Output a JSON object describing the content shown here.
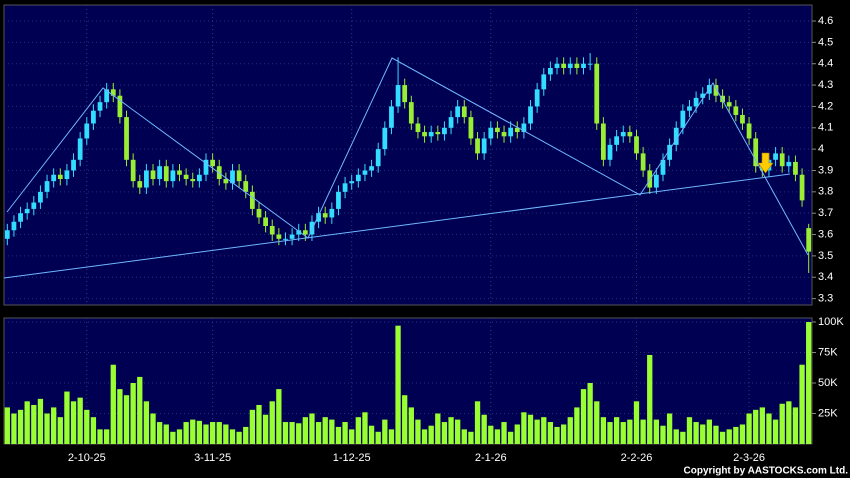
{
  "chart_data": {
    "type": "candlestick",
    "categories": [
      null,
      null,
      null,
      null,
      null,
      null,
      null,
      null,
      null,
      null,
      null,
      null,
      "2-10-25",
      null,
      null,
      null,
      null,
      null,
      null,
      null,
      null,
      null,
      null,
      null,
      null,
      null,
      null,
      null,
      null,
      null,
      null,
      "3-11-25",
      null,
      null,
      null,
      null,
      null,
      null,
      null,
      null,
      null,
      null,
      null,
      null,
      null,
      null,
      null,
      null,
      null,
      null,
      null,
      null,
      "1-12-25",
      null,
      null,
      null,
      null,
      null,
      null,
      null,
      null,
      null,
      null,
      null,
      null,
      null,
      null,
      null,
      null,
      null,
      null,
      null,
      null,
      "2-1-26",
      null,
      null,
      null,
      null,
      null,
      null,
      null,
      null,
      null,
      null,
      null,
      null,
      null,
      null,
      null,
      null,
      null,
      null,
      null,
      null,
      null,
      "2-2-26",
      null,
      null,
      null,
      null,
      null,
      null,
      null,
      null,
      null,
      null,
      null,
      null,
      null,
      null,
      null,
      null,
      "2-3-26",
      null,
      null,
      null,
      null,
      null,
      null,
      null,
      null,
      null
    ],
    "open": [
      3.58,
      3.62,
      3.66,
      3.7,
      3.72,
      3.75,
      3.8,
      3.85,
      3.88,
      3.86,
      3.9,
      3.95,
      4.05,
      4.12,
      4.18,
      4.22,
      4.28,
      4.25,
      4.15,
      3.95,
      3.85,
      3.82,
      3.9,
      3.86,
      3.92,
      3.85,
      3.9,
      3.88,
      3.86,
      3.85,
      3.88,
      3.95,
      3.92,
      3.86,
      3.84,
      3.9,
      3.85,
      3.8,
      3.72,
      3.68,
      3.64,
      3.6,
      3.58,
      3.58,
      3.6,
      3.62,
      3.6,
      3.66,
      3.7,
      3.68,
      3.72,
      3.8,
      3.84,
      3.85,
      3.88,
      3.9,
      3.92,
      4.0,
      4.1,
      4.2,
      4.3,
      4.22,
      4.12,
      4.08,
      4.06,
      4.08,
      4.07,
      4.1,
      4.15,
      4.2,
      4.15,
      4.05,
      3.98,
      4.05,
      4.1,
      4.08,
      4.06,
      4.1,
      4.08,
      4.12,
      4.2,
      4.28,
      4.35,
      4.38,
      4.4,
      4.38,
      4.4,
      4.38,
      4.4,
      4.4,
      4.12,
      3.95,
      4.02,
      4.06,
      4.08,
      4.06,
      3.98,
      3.9,
      3.82,
      3.88,
      3.95,
      4.02,
      4.1,
      4.18,
      4.2,
      4.24,
      4.26,
      4.3,
      4.25,
      4.22,
      4.2,
      4.16,
      4.12,
      4.05,
      3.92,
      3.9,
      3.95,
      3.98,
      3.92,
      3.94,
      3.88,
      3.63
    ],
    "high": [
      3.65,
      3.69,
      3.73,
      3.75,
      3.78,
      3.83,
      3.88,
      3.91,
      3.91,
      3.93,
      3.98,
      4.08,
      4.15,
      4.21,
      4.25,
      4.31,
      4.31,
      4.28,
      4.18,
      3.98,
      3.88,
      3.93,
      3.93,
      3.95,
      3.95,
      3.93,
      3.93,
      3.91,
      3.89,
      3.91,
      3.98,
      3.98,
      3.95,
      3.89,
      3.93,
      3.93,
      3.88,
      3.83,
      3.75,
      3.71,
      3.67,
      3.63,
      3.61,
      3.63,
      3.65,
      3.65,
      3.69,
      3.73,
      3.73,
      3.75,
      3.83,
      3.87,
      3.88,
      3.91,
      3.93,
      3.95,
      4.03,
      4.13,
      4.23,
      4.43,
      4.33,
      4.25,
      4.15,
      4.11,
      4.11,
      4.11,
      4.13,
      4.18,
      4.23,
      4.23,
      4.18,
      4.08,
      4.08,
      4.13,
      4.13,
      4.11,
      4.13,
      4.13,
      4.15,
      4.23,
      4.31,
      4.38,
      4.41,
      4.43,
      4.43,
      4.43,
      4.43,
      4.43,
      4.45,
      4.43,
      4.15,
      4.05,
      4.09,
      4.11,
      4.11,
      4.09,
      4.01,
      3.93,
      3.91,
      3.98,
      4.05,
      4.13,
      4.21,
      4.23,
      4.27,
      4.29,
      4.33,
      4.33,
      4.28,
      4.25,
      4.23,
      4.19,
      4.15,
      4.08,
      3.95,
      3.98,
      4.01,
      4.01,
      3.97,
      3.97,
      3.91,
      3.65
    ],
    "low": [
      3.55,
      3.59,
      3.63,
      3.67,
      3.69,
      3.72,
      3.77,
      3.82,
      3.83,
      3.83,
      3.87,
      3.92,
      4.02,
      4.09,
      4.15,
      4.19,
      4.22,
      4.12,
      3.92,
      3.82,
      3.79,
      3.79,
      3.83,
      3.83,
      3.82,
      3.82,
      3.85,
      3.83,
      3.82,
      3.82,
      3.85,
      3.89,
      3.83,
      3.81,
      3.81,
      3.82,
      3.77,
      3.69,
      3.65,
      3.61,
      3.57,
      3.55,
      3.55,
      3.55,
      3.57,
      3.57,
      3.57,
      3.63,
      3.65,
      3.65,
      3.69,
      3.77,
      3.81,
      3.82,
      3.85,
      3.87,
      3.89,
      3.97,
      4.07,
      4.17,
      4.19,
      4.09,
      4.05,
      4.03,
      4.03,
      4.04,
      4.04,
      4.07,
      4.12,
      4.12,
      4.02,
      3.95,
      3.95,
      4.02,
      4.05,
      4.03,
      4.03,
      4.05,
      4.05,
      4.09,
      4.17,
      4.25,
      4.32,
      4.35,
      4.35,
      4.35,
      4.35,
      4.35,
      4.37,
      4.09,
      3.92,
      3.92,
      3.99,
      4.03,
      4.03,
      3.95,
      3.87,
      3.79,
      3.79,
      3.85,
      3.92,
      3.99,
      4.07,
      4.15,
      4.17,
      4.21,
      4.23,
      4.22,
      4.19,
      4.17,
      4.13,
      4.09,
      4.02,
      3.89,
      3.87,
      3.87,
      3.92,
      3.89,
      3.89,
      3.85,
      3.73,
      3.42
    ],
    "close": [
      3.62,
      3.66,
      3.7,
      3.72,
      3.75,
      3.8,
      3.85,
      3.88,
      3.86,
      3.9,
      3.95,
      4.05,
      4.12,
      4.18,
      4.22,
      4.28,
      4.25,
      4.15,
      3.95,
      3.85,
      3.82,
      3.9,
      3.86,
      3.92,
      3.85,
      3.9,
      3.88,
      3.86,
      3.85,
      3.88,
      3.95,
      3.92,
      3.86,
      3.84,
      3.9,
      3.85,
      3.8,
      3.72,
      3.68,
      3.64,
      3.6,
      3.58,
      3.58,
      3.6,
      3.62,
      3.6,
      3.66,
      3.7,
      3.68,
      3.72,
      3.8,
      3.84,
      3.85,
      3.88,
      3.9,
      3.92,
      4.0,
      4.1,
      4.2,
      4.3,
      4.22,
      4.12,
      4.08,
      4.06,
      4.08,
      4.07,
      4.1,
      4.15,
      4.2,
      4.15,
      4.05,
      3.98,
      4.05,
      4.1,
      4.08,
      4.06,
      4.1,
      4.08,
      4.12,
      4.2,
      4.28,
      4.35,
      4.38,
      4.4,
      4.38,
      4.4,
      4.38,
      4.4,
      4.4,
      4.12,
      3.95,
      4.02,
      4.06,
      4.08,
      4.06,
      3.98,
      3.9,
      3.82,
      3.88,
      3.95,
      4.02,
      4.1,
      4.18,
      4.2,
      4.24,
      4.26,
      4.3,
      4.25,
      4.22,
      4.2,
      4.16,
      4.12,
      4.05,
      3.92,
      3.9,
      3.95,
      3.98,
      3.92,
      3.94,
      3.88,
      3.76,
      3.52
    ],
    "up_color": "#33ddff",
    "down_color": "#99ee33",
    "ylim": [
      3.27,
      4.675
    ],
    "yticks": [
      3.3,
      3.4,
      3.5,
      3.6,
      3.7,
      3.8,
      3.9,
      4,
      4.1,
      4.2,
      4.3,
      4.4,
      4.5,
      4.6
    ],
    "grid": true,
    "volume": {
      "type": "bar",
      "values": [
        30000,
        25000,
        28000,
        35000,
        32000,
        37000,
        25000,
        30000,
        22000,
        43000,
        35000,
        38000,
        28000,
        22000,
        12000,
        12000,
        65000,
        45000,
        40000,
        50000,
        55000,
        35000,
        25000,
        18000,
        16000,
        10000,
        12000,
        18000,
        20000,
        19000,
        16000,
        18000,
        18000,
        16000,
        12000,
        10000,
        14000,
        28000,
        32000,
        24000,
        35000,
        45000,
        18000,
        18000,
        17000,
        22000,
        25000,
        18000,
        22000,
        20000,
        14000,
        18000,
        12000,
        22000,
        26000,
        15000,
        10000,
        20000,
        12000,
        97000,
        40000,
        30000,
        20000,
        12000,
        15000,
        25000,
        18000,
        22000,
        20000,
        12000,
        10000,
        35000,
        24000,
        15000,
        12000,
        18000,
        10000,
        16000,
        26000,
        24000,
        20000,
        22000,
        18000,
        14000,
        16000,
        22000,
        30000,
        45000,
        50000,
        35000,
        22000,
        18000,
        22000,
        18000,
        20000,
        35000,
        20000,
        73000,
        20000,
        15000,
        25000,
        12000,
        10000,
        22000,
        18000,
        16000,
        20000,
        15000,
        10000,
        12000,
        14000,
        16000,
        25000,
        28000,
        30000,
        25000,
        20000,
        33000,
        35000,
        30000,
        65000,
        100000
      ],
      "color": "#99ff33",
      "ylim": [
        0,
        103300
      ],
      "yticks": [
        {
          "value": 25000,
          "label": "25K"
        },
        {
          "value": 50000,
          "label": "50K"
        },
        {
          "value": 75000,
          "label": "75K"
        },
        {
          "value": 100000,
          "label": "100K"
        }
      ]
    }
  },
  "footer": "Copyright by AASTOCKS.com Ltd."
}
